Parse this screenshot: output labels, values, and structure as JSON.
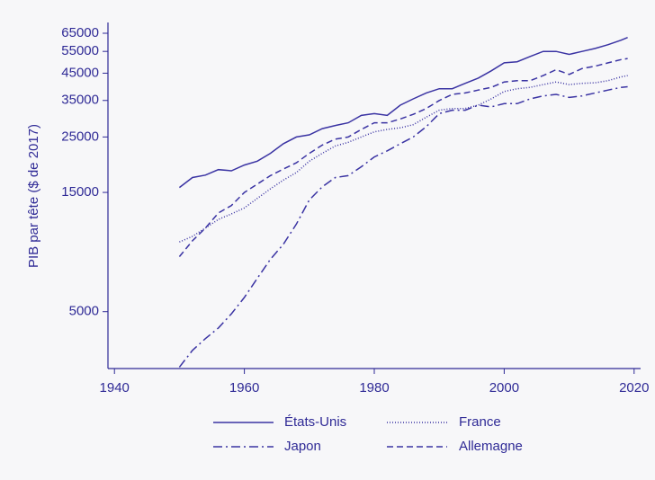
{
  "chart_data": {
    "type": "line",
    "ylabel": "PIB par tête ($ de 2017)",
    "yscale": "log",
    "xlim": [
      1939,
      2021
    ],
    "xticks": [
      1940,
      1960,
      1980,
      2000,
      2020
    ],
    "ylim": [
      2960,
      71800
    ],
    "yticks": [
      5000,
      15000,
      25000,
      35000,
      45000,
      55000,
      65000
    ],
    "x": [
      1950,
      1952,
      1954,
      1956,
      1958,
      1960,
      1962,
      1964,
      1966,
      1968,
      1970,
      1972,
      1974,
      1976,
      1978,
      1980,
      1982,
      1984,
      1986,
      1988,
      1990,
      1992,
      1994,
      1996,
      1998,
      2000,
      2002,
      2004,
      2006,
      2008,
      2010,
      2012,
      2014,
      2016,
      2018,
      2019
    ],
    "series": [
      {
        "name": "États-Unis",
        "color": "#3a33a3",
        "linestyle": "solid",
        "values": [
          15700,
          17200,
          17600,
          18500,
          18300,
          19300,
          20000,
          21500,
          23500,
          25000,
          25500,
          27000,
          27800,
          28500,
          30500,
          31000,
          30500,
          33500,
          35500,
          37500,
          39000,
          39000,
          41000,
          43000,
          46000,
          49500,
          50000,
          52500,
          55000,
          55000,
          53500,
          55000,
          56500,
          58500,
          61000,
          62500
        ]
      },
      {
        "name": "France",
        "color": "#3a33a3",
        "linestyle": "dotted",
        "values": [
          9500,
          10000,
          10800,
          11700,
          12300,
          13000,
          14200,
          15500,
          16800,
          18000,
          20000,
          21500,
          23000,
          23800,
          25000,
          26200,
          26800,
          27200,
          28000,
          30000,
          32000,
          32500,
          32500,
          33500,
          35500,
          38000,
          39000,
          39500,
          40500,
          41500,
          40500,
          41000,
          41200,
          42000,
          43500,
          44000
        ]
      },
      {
        "name": "Japon",
        "color": "#3a33a3",
        "linestyle": "dash-dot",
        "values": [
          3000,
          3500,
          3900,
          4300,
          4900,
          5700,
          6800,
          8100,
          9300,
          11200,
          14000,
          15800,
          17200,
          17500,
          19000,
          20800,
          22000,
          23500,
          25000,
          27500,
          31000,
          32000,
          32000,
          33500,
          33000,
          34000,
          34000,
          35500,
          36500,
          37000,
          36000,
          36500,
          37500,
          38500,
          39500,
          39700
        ]
      },
      {
        "name": "Allemagne",
        "color": "#3a33a3",
        "linestyle": "dashed",
        "values": [
          8300,
          9600,
          10800,
          12400,
          13300,
          15000,
          16200,
          17500,
          18600,
          19700,
          21500,
          23200,
          24500,
          25000,
          26800,
          28500,
          28500,
          29500,
          30800,
          32500,
          35000,
          37000,
          37500,
          38500,
          39500,
          41500,
          42000,
          42000,
          44000,
          46500,
          44500,
          47000,
          48000,
          49500,
          51000,
          51500
        ]
      }
    ]
  }
}
